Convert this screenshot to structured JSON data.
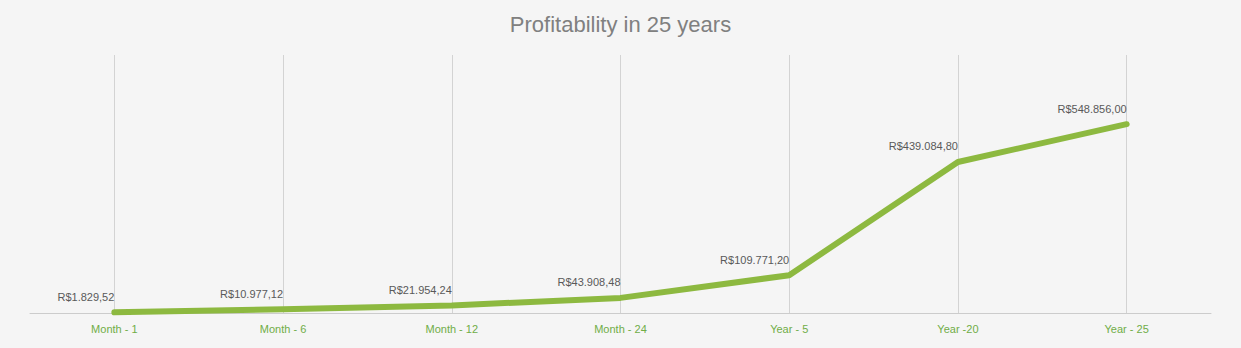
{
  "chart_data": {
    "type": "line",
    "title": "Profitability in 25 years",
    "categories": [
      "Month - 1",
      "Month - 6",
      "Month - 12",
      "Month - 24",
      "Year - 5",
      "Year -20",
      "Year - 25"
    ],
    "values": [
      1829.52,
      10977.12,
      21954.24,
      43908.48,
      109771.2,
      439084.8,
      548856.0
    ],
    "value_labels": [
      "R$1.829,52",
      "R$10.977,12",
      "R$21.954,24",
      "R$43.908,48",
      "R$109.771,20",
      "R$439.084,80",
      "R$548.856,00"
    ],
    "color": "#8db940",
    "ylim": [
      0,
      750000
    ],
    "grid": "x",
    "data_labels": true,
    "tick_labels": "x"
  }
}
